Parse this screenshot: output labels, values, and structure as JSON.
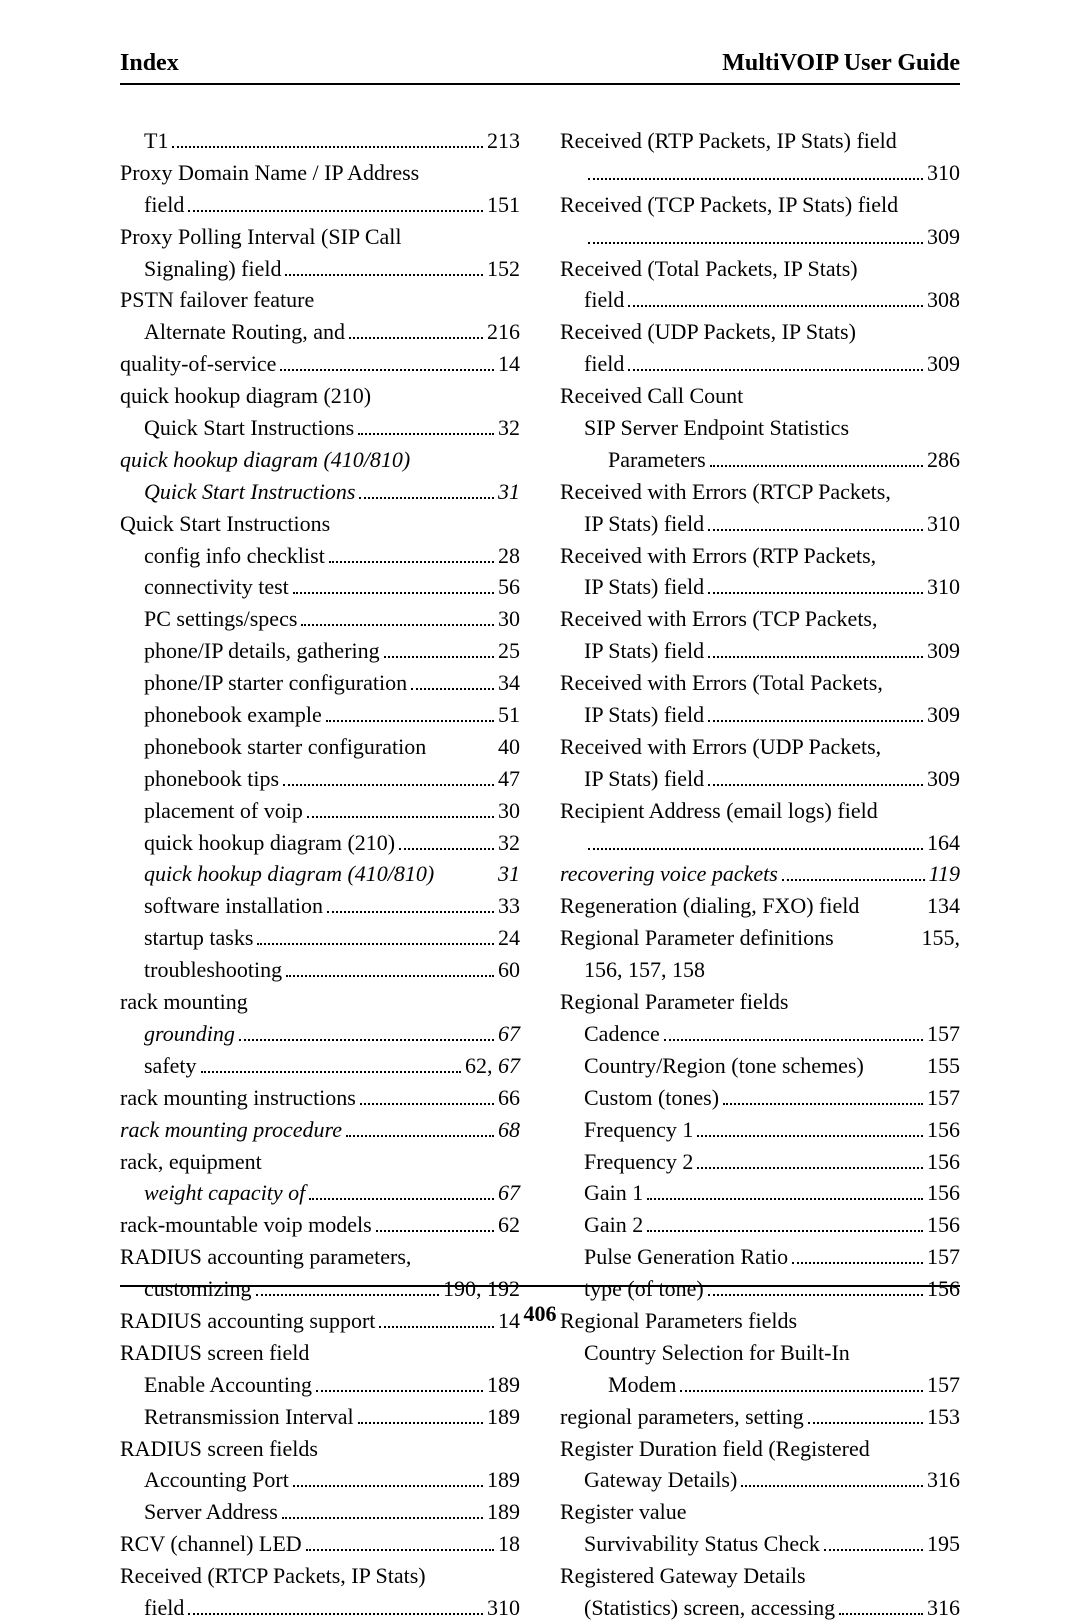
{
  "header": {
    "left": "Index",
    "right": "MultiVOIP User Guide"
  },
  "pageNumber": "406",
  "left": [
    {
      "lvl": 1,
      "label": "T1",
      "page": "213"
    },
    {
      "lvl": 0,
      "label": "Proxy Domain Name / IP Address",
      "wrap": true
    },
    {
      "lvl": 1,
      "label": "field",
      "page": "151"
    },
    {
      "lvl": 0,
      "label": "Proxy Polling Interval (SIP Call",
      "wrap": true
    },
    {
      "lvl": 1,
      "label": "Signaling) field",
      "page": "152"
    },
    {
      "lvl": 0,
      "label": "PSTN failover feature",
      "wrap": true
    },
    {
      "lvl": 1,
      "label": "Alternate Routing, and",
      "page": "216"
    },
    {
      "lvl": 0,
      "label": "quality-of-service",
      "page": "14"
    },
    {
      "lvl": 0,
      "label": "quick hookup diagram (210)",
      "wrap": true
    },
    {
      "lvl": 1,
      "label": "Quick Start Instructions",
      "page": "32"
    },
    {
      "lvl": 0,
      "label": "quick hookup diagram (410/810)",
      "italic": true,
      "wrap": true
    },
    {
      "lvl": 1,
      "label": "Quick Start Instructions",
      "italic": true,
      "page": "31"
    },
    {
      "lvl": 0,
      "label": "Quick Start Instructions",
      "wrap": true
    },
    {
      "lvl": 1,
      "label": "config info checklist",
      "page": "28"
    },
    {
      "lvl": 1,
      "label": "connectivity test",
      "page": "56"
    },
    {
      "lvl": 1,
      "label": "PC settings/specs",
      "page": "30"
    },
    {
      "lvl": 1,
      "label": "phone/IP details, gathering",
      "page": "25"
    },
    {
      "lvl": 1,
      "label": "phone/IP starter configuration",
      "page": "34"
    },
    {
      "lvl": 1,
      "label": "phonebook example",
      "page": "51"
    },
    {
      "lvl": 1,
      "label": "phonebook starter configuration",
      "page": "40",
      "tight": true
    },
    {
      "lvl": 1,
      "label": "phonebook tips",
      "page": "47"
    },
    {
      "lvl": 1,
      "label": "placement of voip",
      "page": "30"
    },
    {
      "lvl": 1,
      "label": "quick hookup diagram (210)",
      "page": "32"
    },
    {
      "lvl": 1,
      "label": "quick hookup diagram (410/810)",
      "italic": true,
      "page": "31",
      "tight": true
    },
    {
      "lvl": 1,
      "label": "software installation",
      "page": "33"
    },
    {
      "lvl": 1,
      "label": "startup tasks",
      "page": "24"
    },
    {
      "lvl": 1,
      "label": "troubleshooting",
      "page": "60"
    },
    {
      "lvl": 0,
      "label": "rack mounting",
      "wrap": true
    },
    {
      "lvl": 1,
      "label": "grounding",
      "italic": true,
      "page": "67"
    },
    {
      "lvl": 1,
      "label": "safety",
      "page": "62, 67",
      "mixedItalic": true
    },
    {
      "lvl": 0,
      "label": "rack mounting instructions",
      "page": "66"
    },
    {
      "lvl": 0,
      "label": "rack mounting procedure",
      "italic": true,
      "page": "68"
    },
    {
      "lvl": 0,
      "label": "rack, equipment",
      "wrap": true
    },
    {
      "lvl": 1,
      "label": "weight capacity of",
      "italic": true,
      "page": "67"
    },
    {
      "lvl": 0,
      "label": "rack-mountable voip models",
      "page": "62"
    },
    {
      "lvl": 0,
      "label": "RADIUS accounting parameters,",
      "wrap": true
    },
    {
      "lvl": 1,
      "label": "customizing",
      "page": "190, 192"
    },
    {
      "lvl": 0,
      "label": "RADIUS accounting support",
      "page": "14"
    },
    {
      "lvl": 0,
      "label": "RADIUS screen field",
      "wrap": true
    },
    {
      "lvl": 1,
      "label": "Enable Accounting",
      "page": "189"
    },
    {
      "lvl": 1,
      "label": "Retransmission Interval",
      "page": "189"
    },
    {
      "lvl": 0,
      "label": "RADIUS screen fields",
      "wrap": true
    },
    {
      "lvl": 1,
      "label": "Accounting Port",
      "page": "189"
    },
    {
      "lvl": 1,
      "label": "Server Address",
      "page": "189"
    },
    {
      "lvl": 0,
      "label": "RCV (channel) LED",
      "page": "18"
    },
    {
      "lvl": 0,
      "label": "Received (RTCP Packets, IP Stats)",
      "wrap": true
    },
    {
      "lvl": 1,
      "label": "field",
      "page": "310"
    }
  ],
  "right": [
    {
      "lvl": 0,
      "label": "Received (RTP Packets, IP Stats) field",
      "wrap": true
    },
    {
      "lvl": 1,
      "label": "",
      "page": "310"
    },
    {
      "lvl": 0,
      "label": "Received (TCP Packets, IP Stats) field",
      "wrap": true
    },
    {
      "lvl": 1,
      "label": "",
      "page": "309"
    },
    {
      "lvl": 0,
      "label": "Received (Total Packets, IP Stats)",
      "wrap": true
    },
    {
      "lvl": 1,
      "label": "field",
      "page": "308"
    },
    {
      "lvl": 0,
      "label": "Received (UDP Packets, IP Stats)",
      "wrap": true
    },
    {
      "lvl": 1,
      "label": "field",
      "page": "309"
    },
    {
      "lvl": 0,
      "label": "Received Call Count",
      "wrap": true
    },
    {
      "lvl": 1,
      "label": "SIP Server Endpoint Statistics",
      "wrap": true
    },
    {
      "lvl": 2,
      "label": "Parameters",
      "page": "286"
    },
    {
      "lvl": 0,
      "label": "Received with Errors (RTCP Packets,",
      "wrap": true
    },
    {
      "lvl": 1,
      "label": "IP Stats) field",
      "page": "310"
    },
    {
      "lvl": 0,
      "label": "Received with Errors (RTP Packets,",
      "wrap": true
    },
    {
      "lvl": 1,
      "label": "IP Stats) field",
      "page": "310"
    },
    {
      "lvl": 0,
      "label": "Received with Errors (TCP Packets,",
      "wrap": true
    },
    {
      "lvl": 1,
      "label": "IP Stats) field",
      "page": "309"
    },
    {
      "lvl": 0,
      "label": "Received with Errors (Total Packets,",
      "wrap": true
    },
    {
      "lvl": 1,
      "label": "IP Stats) field",
      "page": "309"
    },
    {
      "lvl": 0,
      "label": "Received with Errors (UDP Packets,",
      "wrap": true
    },
    {
      "lvl": 1,
      "label": "IP Stats) field",
      "page": "309"
    },
    {
      "lvl": 0,
      "label": "Recipient Address (email logs) field",
      "wrap": true
    },
    {
      "lvl": 1,
      "label": "",
      "page": "164"
    },
    {
      "lvl": 0,
      "label": "recovering voice packets",
      "italic": true,
      "page": "119"
    },
    {
      "lvl": 0,
      "label": "Regeneration (dialing, FXO) field",
      "page": "134",
      "tight": true
    },
    {
      "lvl": 0,
      "label": "Regional Parameter definitions",
      "page": "155,",
      "tight": true
    },
    {
      "lvl": 1,
      "label": "156, 157, 158",
      "wrap": true
    },
    {
      "lvl": 0,
      "label": "Regional Parameter fields",
      "wrap": true
    },
    {
      "lvl": 1,
      "label": "Cadence",
      "page": "157"
    },
    {
      "lvl": 1,
      "label": "Country/Region (tone schemes)",
      "page": "155",
      "tight": true
    },
    {
      "lvl": 1,
      "label": "Custom (tones)",
      "page": "157"
    },
    {
      "lvl": 1,
      "label": "Frequency 1",
      "page": "156"
    },
    {
      "lvl": 1,
      "label": "Frequency 2",
      "page": "156"
    },
    {
      "lvl": 1,
      "label": "Gain 1",
      "page": "156"
    },
    {
      "lvl": 1,
      "label": "Gain 2",
      "page": "156"
    },
    {
      "lvl": 1,
      "label": "Pulse Generation Ratio",
      "page": "157"
    },
    {
      "lvl": 1,
      "label": "type (of tone)",
      "page": "156"
    },
    {
      "lvl": 0,
      "label": "Regional Parameters fields",
      "wrap": true
    },
    {
      "lvl": 1,
      "label": "Country Selection for Built-In",
      "wrap": true
    },
    {
      "lvl": 2,
      "label": "Modem",
      "page": "157"
    },
    {
      "lvl": 0,
      "label": "regional parameters, setting",
      "page": "153"
    },
    {
      "lvl": 0,
      "label": "Register Duration field (Registered",
      "wrap": true
    },
    {
      "lvl": 1,
      "label": "Gateway Details)",
      "page": "316"
    },
    {
      "lvl": 0,
      "label": "Register value",
      "wrap": true
    },
    {
      "lvl": 1,
      "label": "Survivability Status Check",
      "page": "195"
    },
    {
      "lvl": 0,
      "label": "Registered Gateway Details",
      "wrap": true
    },
    {
      "lvl": 1,
      "label": "(Statistics) screen, accessing",
      "page": "316"
    }
  ]
}
